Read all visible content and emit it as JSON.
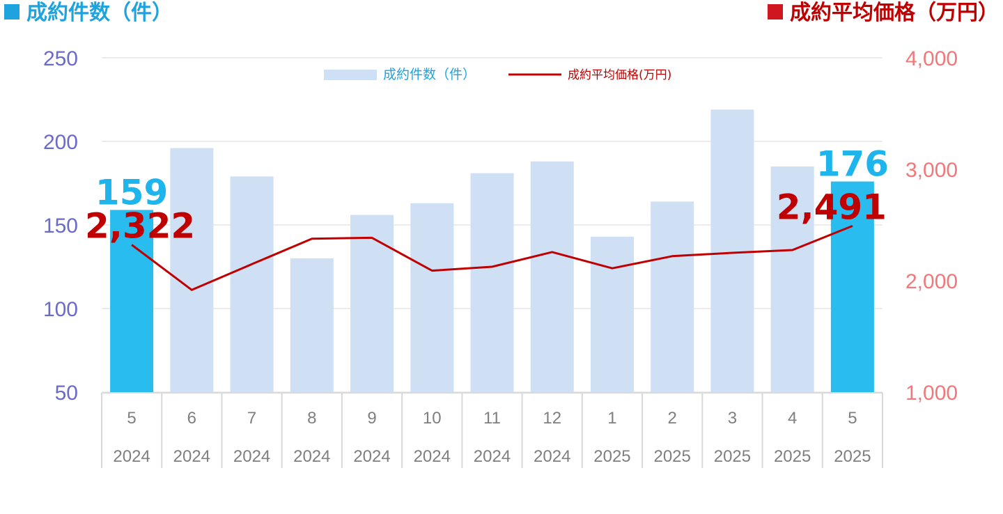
{
  "header": {
    "left_title": "成約件数（件）",
    "right_title": "成約平均価格（万円）"
  },
  "chart_data": {
    "type": "bar",
    "months": [
      "5",
      "6",
      "7",
      "8",
      "9",
      "10",
      "11",
      "12",
      "1",
      "2",
      "3",
      "4",
      "5"
    ],
    "years": [
      "2024",
      "2024",
      "2024",
      "2024",
      "2024",
      "2024",
      "2024",
      "2024",
      "2025",
      "2025",
      "2025",
      "2025",
      "2025"
    ],
    "series": [
      {
        "name": "成約件数（件）",
        "type": "bar",
        "axis": "left",
        "values": [
          159,
          196,
          179,
          130,
          156,
          163,
          181,
          188,
          143,
          164,
          219,
          185,
          176
        ],
        "color": "#cfdff4",
        "highlight_color": "#29bcee",
        "highlight_indices": [
          0,
          12
        ]
      },
      {
        "name": "成約平均価格(万円)",
        "type": "line",
        "axis": "right",
        "values": [
          2322,
          1917,
          2148,
          2377,
          2385,
          2090,
          2125,
          2257,
          2111,
          2220,
          2250,
          2275,
          2491
        ],
        "color": "#c00000"
      }
    ],
    "y_left": {
      "min": 50,
      "max": 250,
      "ticks": [
        "50",
        "100",
        "150",
        "200",
        "250"
      ]
    },
    "y_right": {
      "min": 1000,
      "max": 4000,
      "ticks": [
        "1,000",
        "2,000",
        "3,000",
        "4,000"
      ]
    },
    "grid": true,
    "legend_position": "top-center",
    "data_labels": [
      {
        "text": "159",
        "series": 0,
        "index": 0
      },
      {
        "text": "2,322",
        "series": 1,
        "index": 0
      },
      {
        "text": "176",
        "series": 0,
        "index": 12
      },
      {
        "text": "2,491",
        "series": 1,
        "index": 12
      }
    ]
  }
}
